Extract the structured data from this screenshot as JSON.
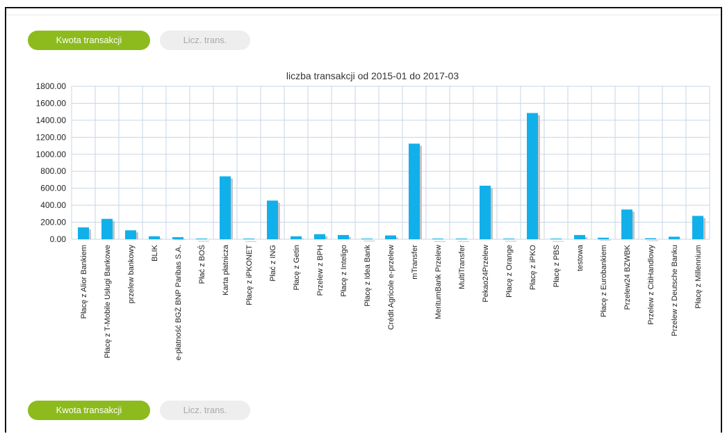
{
  "tabs_top": [
    {
      "label": "Kwota transakcji",
      "active": true
    },
    {
      "label": "Licz. trans.",
      "active": false
    }
  ],
  "tabs_bottom": [
    {
      "label": "Kwota transakcji",
      "active": true
    },
    {
      "label": "Licz. trans.",
      "active": false
    }
  ],
  "colors": {
    "bar": "#12b0ea",
    "bar_shadow": "#c4c4c4",
    "grid": "#c7d6e6",
    "active_tab": "#8dbb1d",
    "inactive_tab": "#eeeeee"
  },
  "chart_data": {
    "type": "bar",
    "title": "liczba transakcji od 2015-01 do 2017-03",
    "xlabel": "",
    "ylabel": "",
    "ylim": [
      0,
      1800
    ],
    "yticks": [
      "1800.00",
      "1600.00",
      "1400.00",
      "1200.00",
      "1000.00",
      "800.00",
      "600.00",
      "400.00",
      "200.00",
      "0.00"
    ],
    "grid": true,
    "categories": [
      "Płacę z Alior Bankiem",
      "Płacę z T-Mobile Usługi Bankowe",
      "przelew bankowy",
      "BLIK",
      "e-płatność BGŻ BNP Paribas S.A.",
      "Płać z BOŚ",
      "Karta płatnicza",
      "Płacę z iPKONET",
      "Płać z ING",
      "Płacę z Getin",
      "Przelew z BPH",
      "Płacę z Inteligo",
      "Płacę z Idea Bank",
      "Crédit Agricole e-przelew",
      "mTransfer",
      "MeritumBank Przelew",
      "MultiTransfer",
      "Pekao24Przelew",
      "Płacę z Orange",
      "Płacę z iPKO",
      "Płacę z PBS",
      "testowa",
      "Płacę z Eurobankiem",
      "Przelew24 BZWBK",
      "Przelew z CitiHandlowy",
      "Przelew z Deutsche Banku",
      "Płacę z Millennium"
    ],
    "values": [
      140,
      240,
      105,
      35,
      25,
      5,
      740,
      2,
      455,
      35,
      60,
      50,
      8,
      45,
      1125,
      2,
      2,
      630,
      5,
      1485,
      3,
      50,
      18,
      350,
      12,
      30,
      275
    ]
  }
}
